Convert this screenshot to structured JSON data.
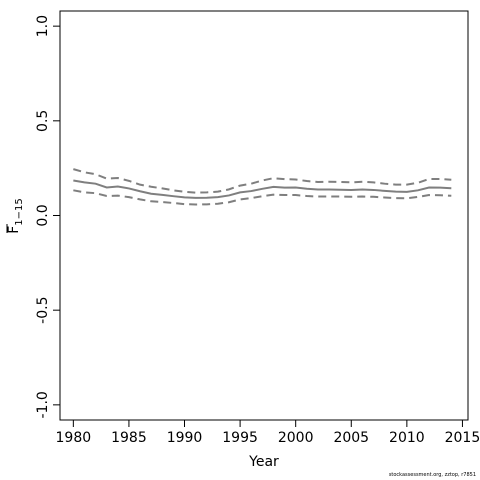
{
  "chart_data": {
    "type": "line",
    "xlabel": "Year",
    "ylabel": "F̄1−15",
    "ylabel_main": "F",
    "ylabel_sub": "1−15",
    "xlim": [
      1978.8,
      2015.5
    ],
    "ylim": [
      -1.08,
      1.08
    ],
    "x_ticks": [
      1980,
      1985,
      1990,
      1995,
      2000,
      2005,
      2010,
      2015
    ],
    "y_ticks": [
      -1.0,
      -0.5,
      0.0,
      0.5,
      1.0
    ],
    "y_tick_labels": [
      "-1.0",
      "-0.5",
      "0.0",
      "0.5",
      "1.0"
    ],
    "grid": false,
    "x": [
      1980,
      1981,
      1982,
      1983,
      1984,
      1985,
      1986,
      1987,
      1988,
      1989,
      1990,
      1991,
      1992,
      1993,
      1994,
      1995,
      1996,
      1997,
      1998,
      1999,
      2000,
      2001,
      2002,
      2003,
      2004,
      2005,
      2006,
      2007,
      2008,
      2009,
      2010,
      2011,
      2012,
      2013,
      2014
    ],
    "series": [
      {
        "role": "upper",
        "style": "dashed",
        "values": [
          0.245,
          0.228,
          0.218,
          0.195,
          0.198,
          0.183,
          0.163,
          0.152,
          0.143,
          0.133,
          0.125,
          0.121,
          0.122,
          0.126,
          0.138,
          0.158,
          0.168,
          0.185,
          0.197,
          0.192,
          0.19,
          0.182,
          0.177,
          0.178,
          0.177,
          0.175,
          0.178,
          0.175,
          0.168,
          0.163,
          0.163,
          0.173,
          0.193,
          0.193,
          0.189
        ]
      },
      {
        "role": "estimate",
        "style": "solid",
        "values": [
          0.185,
          0.175,
          0.168,
          0.148,
          0.153,
          0.143,
          0.128,
          0.115,
          0.109,
          0.102,
          0.096,
          0.093,
          0.094,
          0.097,
          0.106,
          0.122,
          0.129,
          0.141,
          0.151,
          0.147,
          0.148,
          0.141,
          0.137,
          0.137,
          0.136,
          0.135,
          0.137,
          0.135,
          0.13,
          0.126,
          0.125,
          0.133,
          0.148,
          0.147,
          0.144
        ]
      },
      {
        "role": "lower",
        "style": "dashed",
        "values": [
          0.133,
          0.122,
          0.118,
          0.103,
          0.105,
          0.097,
          0.085,
          0.075,
          0.071,
          0.066,
          0.06,
          0.058,
          0.059,
          0.062,
          0.07,
          0.085,
          0.092,
          0.102,
          0.11,
          0.108,
          0.108,
          0.103,
          0.1,
          0.1,
          0.1,
          0.099,
          0.1,
          0.099,
          0.095,
          0.092,
          0.091,
          0.098,
          0.108,
          0.107,
          0.104
        ]
      }
    ],
    "colors": {
      "lines": "#7f7f7f",
      "axes": "#000000"
    }
  },
  "footer": "stockassessment.org, zztop, r7851"
}
